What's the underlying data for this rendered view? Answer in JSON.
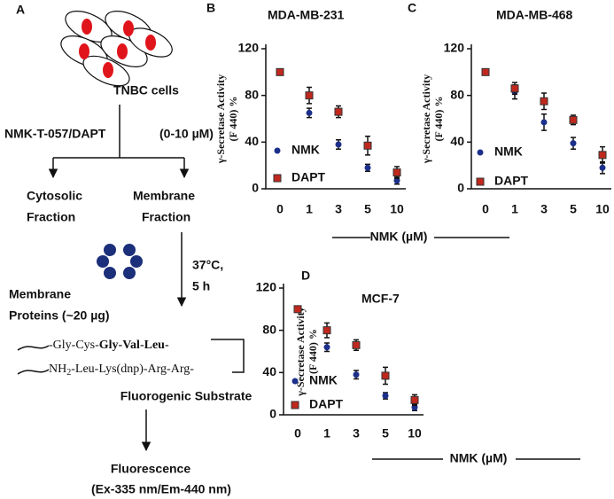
{
  "diagram": {
    "panel": "A",
    "cells": "TNBC cells",
    "treatment": "NMK-T-057/DAPT",
    "dose": "(0-10 µM)",
    "left_branch": [
      "Cytosolic",
      "Fraction"
    ],
    "right_branch": [
      "Membrane",
      "Fraction"
    ],
    "incubation": [
      "37°C,",
      "5 h"
    ],
    "proteins": [
      "Membrane",
      "Proteins (~20 µg)"
    ],
    "peptide_top": [
      "-Gly-Cys-",
      "Gly-Val-Leu-"
    ],
    "peptide_bottom": [
      "NH",
      "2",
      "-Leu-Lys(dnp)-Arg-Arg-"
    ],
    "substrate": "Fluorogenic Substrate",
    "readout": [
      "Fluorescence",
      "(Ex-335 nm/Em-440 nm)"
    ]
  },
  "chart_data": [
    {
      "type": "scatter",
      "panel": "B",
      "title": "MDA-MB-231",
      "ylabel": [
        "γ-Secretase Activity",
        "(F 440) %"
      ],
      "xlabel": "NMK (µM)",
      "categories": [
        "0",
        "1",
        "3",
        "5",
        "10"
      ],
      "ylim": [
        0,
        120
      ],
      "yticks": [
        0,
        40,
        80,
        120
      ],
      "series": [
        {
          "name": "NMK",
          "color": "#1c2f8a",
          "marker": "circle",
          "values": [
            100,
            65,
            38,
            18,
            7
          ],
          "errors": [
            0,
            4,
            4,
            3,
            3
          ]
        },
        {
          "name": "DAPT",
          "color": "#c0281e",
          "marker": "square",
          "values": [
            100,
            80,
            66,
            37,
            14
          ],
          "errors": [
            0,
            7,
            5,
            8,
            5
          ]
        }
      ]
    },
    {
      "type": "scatter",
      "panel": "C",
      "title": "MDA-MB-468",
      "ylabel": [
        "γ-Secretase Activity",
        "(F 440) %"
      ],
      "categories": [
        "0",
        "1",
        "3",
        "5",
        "10"
      ],
      "ylim": [
        0,
        120
      ],
      "yticks": [
        0,
        40,
        80,
        120
      ],
      "series": [
        {
          "name": "NMK",
          "color": "#1c2f8a",
          "marker": "circle",
          "values": [
            100,
            83,
            57,
            39,
            18
          ],
          "errors": [
            0,
            6,
            7,
            5,
            5
          ]
        },
        {
          "name": "DAPT",
          "color": "#c0281e",
          "marker": "square",
          "values": [
            100,
            86,
            75,
            59,
            29
          ],
          "errors": [
            0,
            5,
            7,
            4,
            7
          ]
        }
      ]
    },
    {
      "type": "scatter",
      "panel": "D",
      "title": "MCF-7",
      "ylabel": [
        "γ-Secretase Activity",
        "(F 440) %"
      ],
      "xlabel": "NMK (µM)",
      "categories": [
        "0",
        "1",
        "3",
        "5",
        "10"
      ],
      "ylim": [
        0,
        120
      ],
      "yticks": [
        0,
        40,
        80,
        120
      ],
      "series": [
        {
          "name": "NMK",
          "color": "#1c2f8a",
          "marker": "circle",
          "values": [
            100,
            64,
            38,
            18,
            7
          ],
          "errors": [
            0,
            4,
            4,
            3,
            3
          ]
        },
        {
          "name": "DAPT",
          "color": "#c0281e",
          "marker": "square",
          "values": [
            100,
            80,
            66,
            37,
            14
          ],
          "errors": [
            0,
            7,
            5,
            8,
            5
          ]
        }
      ]
    }
  ]
}
